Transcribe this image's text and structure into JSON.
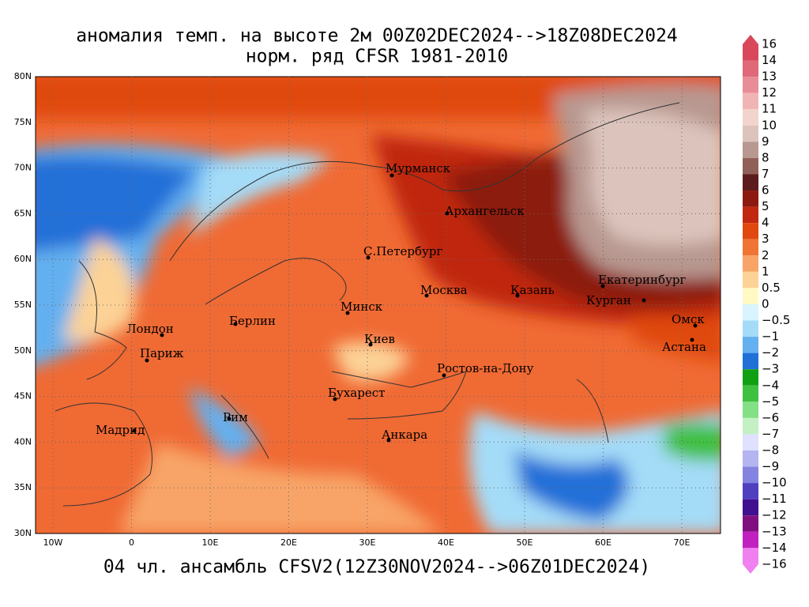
{
  "header": {
    "title": "аномалия темп. на высоте 2м 00Z02DEC2024-->18Z08DEC2024",
    "subtitle": "норм. ряд CFSR 1981-2010"
  },
  "footer": {
    "text": "04 чл. ансамбль CFSV2(12Z30NOV2024-->06Z01DEC2024)"
  },
  "map": {
    "lat_labels": [
      "80N",
      "75N",
      "70N",
      "65N",
      "60N",
      "55N",
      "50N",
      "45N",
      "40N",
      "35N",
      "30N"
    ],
    "lon_labels": [
      "10W",
      "0",
      "10E",
      "20E",
      "30E",
      "40E",
      "50E",
      "60E",
      "70E"
    ],
    "cities": [
      "Мурманск",
      "Архангельск",
      "С.Петербург",
      "Москва",
      "Казань",
      "Екатеринбург",
      "Курган",
      "Омск",
      "Астана",
      "Минск",
      "Берлин",
      "Лондон",
      "Париж",
      "Киев",
      "Ростов-на-Дону",
      "Бухарест",
      "Рим",
      "Мадрид",
      "Анкара"
    ]
  },
  "colorbar": {
    "labels": [
      "16",
      "14",
      "13",
      "12",
      "11",
      "10",
      "9",
      "8",
      "7",
      "6",
      "5",
      "4",
      "3",
      "2",
      "1",
      "0.5",
      "0",
      "−0.5",
      "−1",
      "−2",
      "−3",
      "−4",
      "−5",
      "−6",
      "−7",
      "−8",
      "−9",
      "−10",
      "−11",
      "−12",
      "−13",
      "−14",
      "−16"
    ],
    "colors": [
      "#d8485a",
      "#e06878",
      "#e88c96",
      "#f0b4b4",
      "#f2d4cc",
      "#dcc4bc",
      "#b89890",
      "#906058",
      "#5c1c1c",
      "#8c1a10",
      "#c02810",
      "#e04810",
      "#f07434",
      "#f8a468",
      "#fcd296",
      "#fffac4",
      "#d8f4ff",
      "#a4dcf8",
      "#64b0f0",
      "#2070d8",
      "#10a014",
      "#40c040",
      "#84e084",
      "#c4f0c4",
      "#e0e0ff",
      "#b4b4f0",
      "#8484e0",
      "#5040c0",
      "#401090",
      "#801080",
      "#c020c0",
      "#f080f0"
    ]
  }
}
